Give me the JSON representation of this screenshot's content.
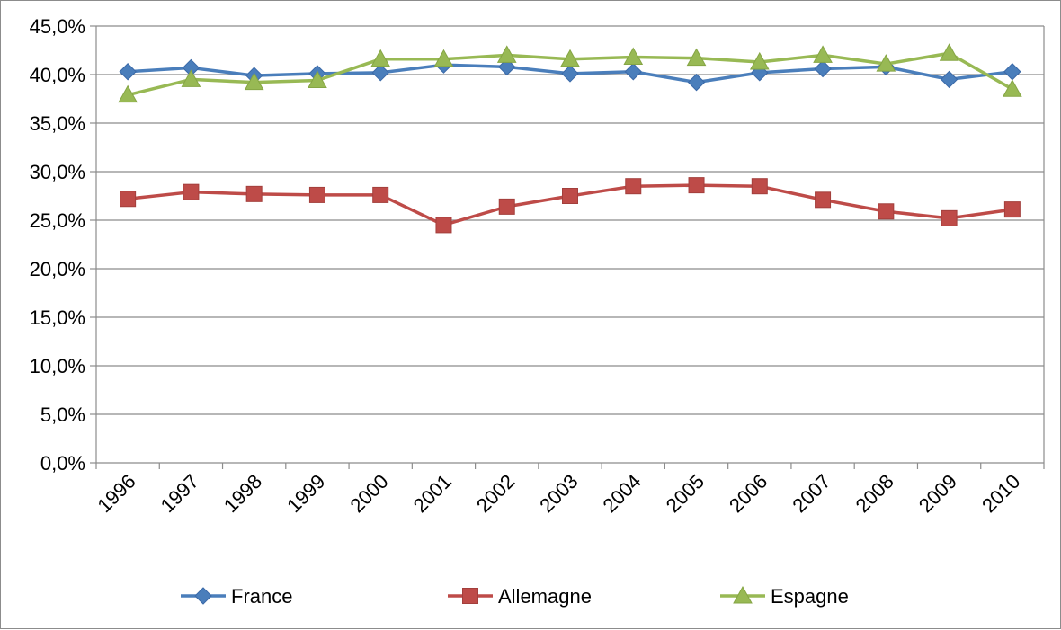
{
  "chart_data": {
    "type": "line",
    "title": "",
    "xlabel": "",
    "ylabel": "",
    "categories": [
      "1996",
      "1997",
      "1998",
      "1999",
      "2000",
      "2001",
      "2002",
      "2003",
      "2004",
      "2005",
      "2006",
      "2007",
      "2008",
      "2009",
      "2010"
    ],
    "ylim": [
      0,
      45
    ],
    "yticks": [
      0,
      5,
      10,
      15,
      20,
      25,
      30,
      35,
      40,
      45
    ],
    "ytick_labels": [
      "0,0%",
      "5,0%",
      "10,0%",
      "15,0%",
      "20,0%",
      "25,0%",
      "30,0%",
      "35,0%",
      "40,0%",
      "45,0%"
    ],
    "grid": "horizontal",
    "legend_position": "bottom",
    "series": [
      {
        "name": "France",
        "color": "#4a7ebb",
        "marker": "diamond",
        "values": [
          40.3,
          40.7,
          39.9,
          40.1,
          40.2,
          41.0,
          40.8,
          40.1,
          40.3,
          39.2,
          40.2,
          40.6,
          40.8,
          39.5,
          40.3
        ]
      },
      {
        "name": "Allemagne",
        "color": "#be4b48",
        "marker": "square",
        "values": [
          27.2,
          27.9,
          27.7,
          27.6,
          27.6,
          24.5,
          26.4,
          27.5,
          28.5,
          28.6,
          28.5,
          27.1,
          25.9,
          25.2,
          26.1
        ]
      },
      {
        "name": "Espagne",
        "color": "#98b954",
        "marker": "triangle",
        "values": [
          37.9,
          39.5,
          39.2,
          39.4,
          41.6,
          41.6,
          42.0,
          41.6,
          41.8,
          41.7,
          41.3,
          42.0,
          41.1,
          42.2,
          38.5
        ]
      }
    ]
  }
}
